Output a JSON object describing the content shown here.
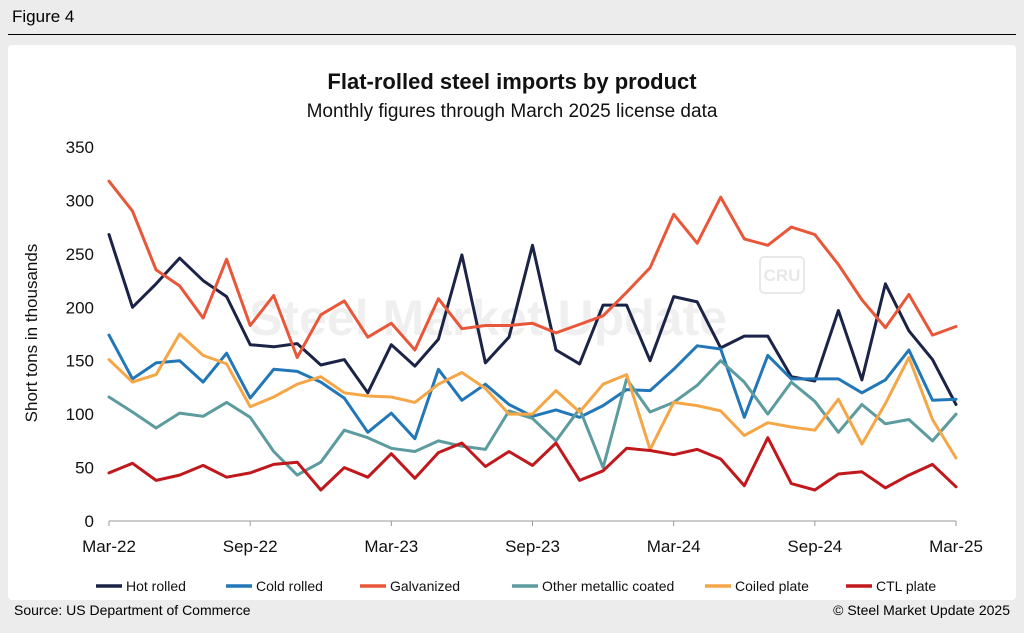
{
  "figure_label": "Figure 4",
  "source": "Source: US Department of Commerce",
  "credit": "© Steel Market Update 2025",
  "watermark": {
    "text": "Steel Market Update",
    "badge": "CRU"
  },
  "chart_data": {
    "type": "line",
    "title": "Flat-rolled steel imports by product",
    "subtitle": "Monthly figures through March 2025 license data",
    "ylabel": "Short tons in thousands",
    "xlabel": "",
    "ylim": [
      0,
      350
    ],
    "yticks": [
      0,
      50,
      100,
      150,
      200,
      250,
      300,
      350
    ],
    "grid": false,
    "legend": "bottom",
    "x": [
      "Mar-22",
      "Apr-22",
      "May-22",
      "Jun-22",
      "Jul-22",
      "Aug-22",
      "Sep-22",
      "Oct-22",
      "Nov-22",
      "Dec-22",
      "Jan-23",
      "Feb-23",
      "Mar-23",
      "Apr-23",
      "May-23",
      "Jun-23",
      "Jul-23",
      "Aug-23",
      "Sep-23",
      "Oct-23",
      "Nov-23",
      "Dec-23",
      "Jan-24",
      "Feb-24",
      "Mar-24",
      "Apr-24",
      "May-24",
      "Jun-24",
      "Jul-24",
      "Aug-24",
      "Sep-24",
      "Oct-24",
      "Nov-24",
      "Dec-24",
      "Jan-25",
      "Feb-25",
      "Mar-25"
    ],
    "xtick_labels": [
      "Mar-22",
      "Sep-22",
      "Mar-23",
      "Sep-23",
      "Mar-24",
      "Sep-24",
      "Mar-25"
    ],
    "series": [
      {
        "name": "Hot rolled",
        "color": "#1b2447",
        "values": [
          268,
          200,
          222,
          246,
          225,
          210,
          165,
          163,
          166,
          146,
          151,
          120,
          165,
          145,
          170,
          249,
          148,
          172,
          258,
          160,
          147,
          202,
          202,
          150,
          210,
          205,
          162,
          173,
          173,
          135,
          131,
          197,
          132,
          222,
          178,
          151,
          109
        ]
      },
      {
        "name": "Cold rolled",
        "color": "#2277b8",
        "values": [
          174,
          133,
          148,
          150,
          130,
          157,
          115,
          142,
          140,
          130,
          115,
          83,
          101,
          77,
          142,
          113,
          128,
          109,
          98,
          104,
          97,
          108,
          123,
          122,
          142,
          164,
          161,
          97,
          155,
          133,
          133,
          133,
          120,
          132,
          160,
          113,
          114
        ]
      },
      {
        "name": "Galvanized",
        "color": "#e8573a",
        "values": [
          318,
          290,
          235,
          220,
          190,
          245,
          183,
          211,
          153,
          193,
          206,
          172,
          185,
          160,
          208,
          180,
          183,
          183,
          185,
          176,
          184,
          192,
          214,
          237,
          287,
          260,
          303,
          264,
          258,
          275,
          268,
          240,
          207,
          181,
          212,
          174,
          182
        ]
      },
      {
        "name": "Other metallic coated",
        "color": "#5c9b9e",
        "values": [
          116,
          102,
          87,
          101,
          98,
          111,
          97,
          65,
          43,
          55,
          85,
          78,
          68,
          65,
          75,
          70,
          67,
          103,
          96,
          75,
          105,
          50,
          133,
          102,
          111,
          127,
          150,
          130,
          100,
          130,
          112,
          83,
          109,
          91,
          95,
          75,
          100
        ]
      },
      {
        "name": "Coiled plate",
        "color": "#f5a646",
        "values": [
          151,
          130,
          137,
          175,
          155,
          147,
          107,
          116,
          128,
          135,
          120,
          117,
          116,
          111,
          128,
          139,
          124,
          100,
          100,
          122,
          102,
          128,
          137,
          67,
          111,
          108,
          103,
          80,
          92,
          88,
          85,
          114,
          72,
          110,
          153,
          95,
          59
        ]
      },
      {
        "name": "CTL plate",
        "color": "#c0181c",
        "values": [
          45,
          54,
          38,
          43,
          52,
          41,
          45,
          53,
          55,
          29,
          50,
          41,
          63,
          40,
          64,
          73,
          51,
          65,
          52,
          73,
          38,
          47,
          68,
          66,
          62,
          67,
          58,
          33,
          78,
          35,
          29,
          44,
          46,
          31,
          43,
          53,
          32
        ]
      }
    ]
  }
}
